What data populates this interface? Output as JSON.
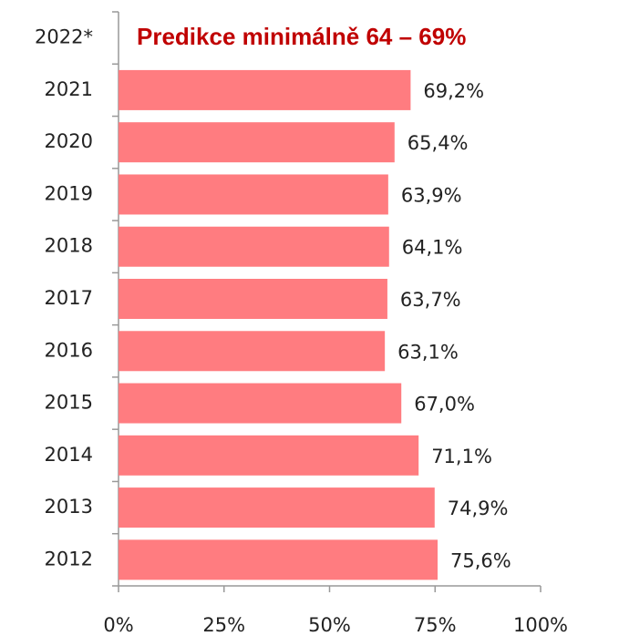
{
  "chart_data": {
    "type": "bar",
    "orientation": "horizontal",
    "annotation": "Predikce minimálně 64 – 69%",
    "categories": [
      "2022*",
      "2021",
      "2020",
      "2019",
      "2018",
      "2017",
      "2016",
      "2015",
      "2014",
      "2013",
      "2012"
    ],
    "values": [
      null,
      69.2,
      65.4,
      63.9,
      64.1,
      63.7,
      63.1,
      67.0,
      71.1,
      74.9,
      75.6
    ],
    "value_labels": [
      null,
      "69,2%",
      "65,4%",
      "63,9%",
      "64,1%",
      "63,7%",
      "63,1%",
      "67,0%",
      "71,1%",
      "74,9%",
      "75,6%"
    ],
    "color": "#ff7c80",
    "xlim": [
      0,
      100
    ],
    "xticks": [
      {
        "value": 0,
        "label": "0%"
      },
      {
        "value": 25,
        "label": "25%"
      },
      {
        "value": 50,
        "label": "50%"
      },
      {
        "value": 75,
        "label": "75%"
      },
      {
        "value": 100,
        "label": "100%"
      }
    ]
  }
}
